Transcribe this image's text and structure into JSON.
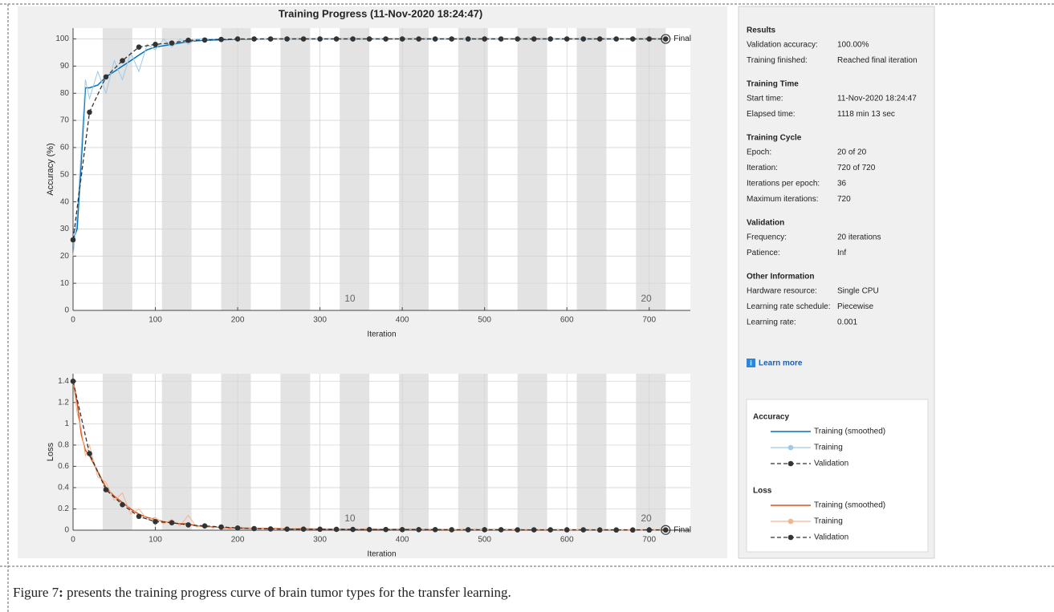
{
  "title": "Training Progress (11-Nov-2020 18:24:47)",
  "chart_data": [
    {
      "type": "line",
      "ylabel": "Accuracy (%)",
      "xlabel": "Iteration",
      "legend_title": "Accuracy",
      "final_label": "Final",
      "xlim": [
        0,
        750
      ],
      "ylim": [
        0,
        104
      ],
      "xticks": [
        0,
        100,
        200,
        300,
        400,
        500,
        600,
        700
      ],
      "yticks": [
        0,
        10,
        20,
        30,
        40,
        50,
        60,
        70,
        80,
        90,
        100
      ],
      "grid": true,
      "epoch_labels": [
        "10",
        "20"
      ],
      "series": [
        {
          "name": "Training (smoothed)",
          "color": "#0072bd",
          "style": "solid",
          "x": [
            0,
            5,
            10,
            15,
            20,
            30,
            40,
            50,
            60,
            70,
            80,
            90,
            100,
            110,
            120,
            130,
            140,
            150,
            160,
            170,
            180,
            190,
            200,
            240,
            280,
            320,
            360,
            400,
            440,
            480,
            520,
            560,
            600,
            640,
            680,
            720
          ],
          "values": [
            26,
            30,
            55,
            82,
            82,
            83,
            86,
            88,
            90,
            92,
            94,
            96,
            97,
            97.5,
            98,
            98.5,
            99,
            99.3,
            99.5,
            99.6,
            99.7,
            99.8,
            99.9,
            100,
            100,
            100,
            100,
            100,
            100,
            100,
            100,
            100,
            100,
            100,
            100,
            100
          ]
        },
        {
          "name": "Training",
          "color": "#9ec9e8",
          "style": "raw",
          "x": [
            0,
            5,
            10,
            15,
            20,
            30,
            40,
            50,
            60,
            70,
            80,
            90,
            100,
            110,
            120,
            130,
            140,
            150,
            160,
            170,
            180,
            190,
            200,
            240,
            280,
            320,
            360,
            400,
            440,
            480,
            520,
            560,
            600,
            640,
            680,
            720
          ],
          "values": [
            20,
            35,
            60,
            85,
            78,
            88,
            80,
            92,
            85,
            95,
            88,
            98,
            96,
            100,
            97,
            100,
            98,
            100,
            100,
            100,
            100,
            100,
            100,
            100,
            100,
            100,
            100,
            100,
            100,
            100,
            100,
            100,
            100,
            100,
            100,
            100
          ]
        },
        {
          "name": "Validation",
          "color": "#333333",
          "style": "dashed",
          "x": [
            0,
            20,
            40,
            60,
            80,
            100,
            120,
            140,
            160,
            180,
            200,
            220,
            240,
            260,
            280,
            300,
            320,
            340,
            360,
            380,
            400,
            420,
            440,
            460,
            480,
            500,
            520,
            540,
            560,
            580,
            600,
            620,
            640,
            660,
            680,
            700,
            720
          ],
          "values": [
            26,
            73,
            86,
            92,
            97,
            98,
            98.5,
            99.5,
            99.6,
            99.8,
            100,
            100,
            100,
            100,
            100,
            100,
            100,
            100,
            100,
            100,
            100,
            100,
            100,
            100,
            100,
            100,
            100,
            100,
            100,
            100,
            100,
            100,
            100,
            100,
            100,
            100,
            100
          ]
        }
      ]
    },
    {
      "type": "line",
      "ylabel": "Loss",
      "xlabel": "Iteration",
      "legend_title": "Loss",
      "final_label": "Final",
      "xlim": [
        0,
        750
      ],
      "ylim": [
        0,
        1.47
      ],
      "xticks": [
        0,
        100,
        200,
        300,
        400,
        500,
        600,
        700
      ],
      "yticks": [
        0,
        0.2,
        0.4,
        0.6,
        0.8,
        1,
        1.2,
        1.4
      ],
      "grid": true,
      "epoch_labels": [
        "10",
        "20"
      ],
      "series": [
        {
          "name": "Training (smoothed)",
          "color": "#d95319",
          "style": "solid",
          "x": [
            0,
            5,
            10,
            15,
            20,
            30,
            40,
            50,
            60,
            70,
            80,
            90,
            100,
            110,
            120,
            130,
            140,
            150,
            160,
            170,
            180,
            190,
            200,
            240,
            280,
            320,
            360,
            400,
            440,
            480,
            520,
            560,
            600,
            640,
            680,
            720
          ],
          "values": [
            1.4,
            1.2,
            0.9,
            0.75,
            0.7,
            0.55,
            0.4,
            0.32,
            0.26,
            0.2,
            0.15,
            0.12,
            0.1,
            0.08,
            0.07,
            0.06,
            0.06,
            0.04,
            0.035,
            0.03,
            0.025,
            0.02,
            0.02,
            0.015,
            0.012,
            0.01,
            0.01,
            0.008,
            0.007,
            0.006,
            0.005,
            0.005,
            0.004,
            0.004,
            0.003,
            0.003
          ]
        },
        {
          "name": "Training",
          "color": "#f2b58f",
          "style": "raw",
          "x": [
            0,
            5,
            10,
            15,
            20,
            30,
            40,
            50,
            60,
            70,
            80,
            90,
            100,
            110,
            120,
            130,
            140,
            150,
            160,
            170,
            180,
            190,
            200,
            240,
            280,
            320,
            360,
            400,
            440,
            480,
            520,
            560,
            600,
            640,
            680,
            720
          ],
          "values": [
            1.4,
            1.1,
            0.95,
            0.7,
            0.8,
            0.5,
            0.45,
            0.28,
            0.35,
            0.15,
            0.2,
            0.1,
            0.12,
            0.06,
            0.1,
            0.04,
            0.14,
            0.03,
            0.05,
            0.02,
            0.04,
            0.01,
            0.03,
            0.01,
            0.02,
            0.005,
            0.015,
            0.005,
            0.01,
            0.005,
            0.004,
            0.008,
            0.003,
            0.005,
            0.002,
            0.003
          ]
        },
        {
          "name": "Validation",
          "color": "#333333",
          "style": "dashed",
          "x": [
            0,
            20,
            40,
            60,
            80,
            100,
            120,
            140,
            160,
            180,
            200,
            220,
            240,
            260,
            280,
            300,
            320,
            340,
            360,
            380,
            400,
            420,
            440,
            460,
            480,
            500,
            520,
            540,
            560,
            580,
            600,
            620,
            640,
            660,
            680,
            700,
            720
          ],
          "values": [
            1.4,
            0.72,
            0.38,
            0.24,
            0.13,
            0.08,
            0.07,
            0.05,
            0.04,
            0.03,
            0.02,
            0.015,
            0.012,
            0.01,
            0.01,
            0.009,
            0.008,
            0.007,
            0.006,
            0.006,
            0.005,
            0.005,
            0.005,
            0.004,
            0.004,
            0.004,
            0.004,
            0.003,
            0.003,
            0.003,
            0.003,
            0.003,
            0.002,
            0.002,
            0.002,
            0.002,
            0.002
          ]
        }
      ]
    }
  ],
  "panel": {
    "sections": [
      {
        "title": "Results",
        "rows": [
          [
            "Validation accuracy:",
            "100.00%"
          ],
          [
            "Training finished:",
            "Reached final iteration"
          ]
        ]
      },
      {
        "title": "Training Time",
        "rows": [
          [
            "Start time:",
            "11-Nov-2020 18:24:47"
          ],
          [
            "Elapsed time:",
            "1118 min 13 sec"
          ]
        ]
      },
      {
        "title": "Training Cycle",
        "rows": [
          [
            "Epoch:",
            "20 of 20"
          ],
          [
            "Iteration:",
            "720 of 720"
          ],
          [
            "Iterations per epoch:",
            "36"
          ],
          [
            "Maximum iterations:",
            "720"
          ]
        ]
      },
      {
        "title": "Validation",
        "rows": [
          [
            "Frequency:",
            "20 iterations"
          ],
          [
            "Patience:",
            "Inf"
          ]
        ]
      },
      {
        "title": "Other Information",
        "rows": [
          [
            "Hardware resource:",
            "Single CPU"
          ],
          [
            "Learning rate schedule:",
            "Piecewise"
          ],
          [
            "Learning rate:",
            "0.001"
          ]
        ]
      }
    ],
    "learn_more": "Learn more"
  },
  "caption": {
    "label": "Figure 7",
    "colon": ":",
    "text": " presents the training progress curve of brain tumor types for the transfer learning."
  }
}
